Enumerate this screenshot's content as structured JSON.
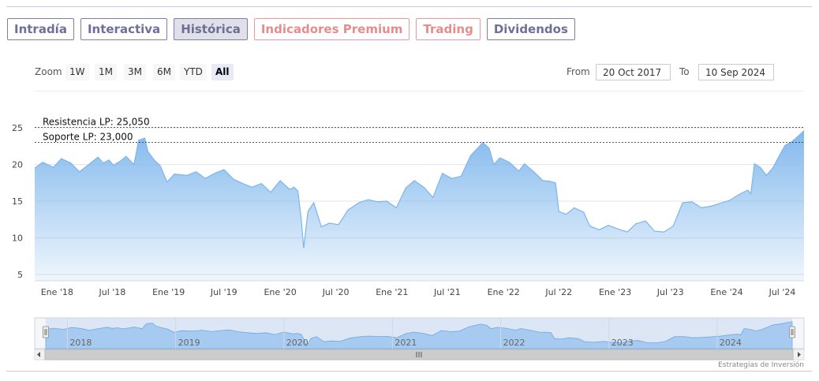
{
  "tabs": [
    {
      "label": "Intradía",
      "state": "normal"
    },
    {
      "label": "Interactiva",
      "state": "normal"
    },
    {
      "label": "Histórica",
      "state": "active"
    },
    {
      "label": "Indicadores Premium",
      "state": "premium"
    },
    {
      "label": "Trading",
      "state": "premium"
    },
    {
      "label": "Dividendos",
      "state": "normal"
    }
  ],
  "range_selector": {
    "zoom_label": "Zoom",
    "buttons": [
      "1W",
      "1M",
      "3M",
      "6M",
      "YTD",
      "All"
    ],
    "selected": "All",
    "from_label": "From",
    "from_value": "20 Oct 2017",
    "to_label": "To",
    "to_value": "10 Sep 2024"
  },
  "credits": "Estrategias de Inversión",
  "colors": {
    "series_line": "#7cb5ec",
    "navigator_fill": "#9ec6ee",
    "tab_border": "#7d7fa8",
    "premium_tab": "#e58d8d"
  },
  "chart_data": {
    "type": "area",
    "y_ticks": [
      "5",
      "10",
      "15",
      "20",
      "25"
    ],
    "ylim": [
      5,
      25
    ],
    "xlim": [
      "2017-10-20",
      "2024-09-10"
    ],
    "x_tick_labels": [
      "Ene '18",
      "Jul '18",
      "Ene '19",
      "Jul '19",
      "Ene '20",
      "Jul '20",
      "Ene '21",
      "Jul '21",
      "Ene '22",
      "Jul '22",
      "Ene '23",
      "Jul '23",
      "Ene '24",
      "Jul '24"
    ],
    "navigator_labels": [
      "2018",
      "2019",
      "2020",
      "2021",
      "2022",
      "2023",
      "2024"
    ],
    "grid": true,
    "annotations": [
      {
        "label": "Resistencia LP: 25,050",
        "value": 25.05
      },
      {
        "label": "Soporte LP: 23,000",
        "value": 23.0
      }
    ],
    "series": [
      {
        "points": [
          [
            "2017-10-20",
            19.5
          ],
          [
            "2017-11-15",
            20.3
          ],
          [
            "2017-12-20",
            19.6
          ],
          [
            "2018-01-15",
            20.8
          ],
          [
            "2018-02-15",
            20.2
          ],
          [
            "2018-03-15",
            19.0
          ],
          [
            "2018-04-15",
            20.0
          ],
          [
            "2018-05-15",
            21.0
          ],
          [
            "2018-06-01",
            20.2
          ],
          [
            "2018-06-20",
            20.6
          ],
          [
            "2018-07-05",
            19.9
          ],
          [
            "2018-07-25",
            20.4
          ],
          [
            "2018-08-15",
            21.1
          ],
          [
            "2018-09-10",
            20.0
          ],
          [
            "2018-09-25",
            23.3
          ],
          [
            "2018-10-15",
            23.6
          ],
          [
            "2018-10-25",
            21.8
          ],
          [
            "2018-11-15",
            20.6
          ],
          [
            "2018-12-05",
            19.8
          ],
          [
            "2018-12-27",
            17.6
          ],
          [
            "2019-01-20",
            18.7
          ],
          [
            "2019-03-01",
            18.5
          ],
          [
            "2019-04-01",
            19.0
          ],
          [
            "2019-05-01",
            18.1
          ],
          [
            "2019-06-01",
            18.8
          ],
          [
            "2019-07-01",
            19.3
          ],
          [
            "2019-08-01",
            18.0
          ],
          [
            "2019-09-01",
            17.4
          ],
          [
            "2019-10-01",
            16.9
          ],
          [
            "2019-11-01",
            17.4
          ],
          [
            "2019-12-01",
            16.2
          ],
          [
            "2020-01-01",
            17.8
          ],
          [
            "2020-02-01",
            16.6
          ],
          [
            "2020-02-15",
            16.9
          ],
          [
            "2020-02-28",
            16.4
          ],
          [
            "2020-03-10",
            12.5
          ],
          [
            "2020-03-18",
            8.6
          ],
          [
            "2020-04-01",
            13.6
          ],
          [
            "2020-04-20",
            14.8
          ],
          [
            "2020-05-15",
            11.5
          ],
          [
            "2020-06-10",
            12.0
          ],
          [
            "2020-07-10",
            11.8
          ],
          [
            "2020-08-10",
            13.8
          ],
          [
            "2020-09-15",
            14.8
          ],
          [
            "2020-10-15",
            15.2
          ],
          [
            "2020-11-15",
            14.9
          ],
          [
            "2020-12-15",
            15.0
          ],
          [
            "2021-01-15",
            14.1
          ],
          [
            "2021-02-15",
            16.8
          ],
          [
            "2021-03-15",
            17.8
          ],
          [
            "2021-04-15",
            16.9
          ],
          [
            "2021-05-15",
            15.5
          ],
          [
            "2021-06-15",
            18.8
          ],
          [
            "2021-07-15",
            18.1
          ],
          [
            "2021-08-15",
            18.4
          ],
          [
            "2021-09-15",
            21.2
          ],
          [
            "2021-10-10",
            22.3
          ],
          [
            "2021-10-25",
            23.0
          ],
          [
            "2021-11-15",
            22.2
          ],
          [
            "2021-11-30",
            20.0
          ],
          [
            "2021-12-20",
            20.9
          ],
          [
            "2022-01-20",
            20.3
          ],
          [
            "2022-02-20",
            19.1
          ],
          [
            "2022-03-10",
            20.1
          ],
          [
            "2022-04-10",
            19.0
          ],
          [
            "2022-05-10",
            17.8
          ],
          [
            "2022-06-01",
            17.7
          ],
          [
            "2022-06-20",
            17.5
          ],
          [
            "2022-07-01",
            13.6
          ],
          [
            "2022-07-25",
            13.2
          ],
          [
            "2022-08-20",
            14.1
          ],
          [
            "2022-09-20",
            13.5
          ],
          [
            "2022-10-10",
            11.6
          ],
          [
            "2022-11-10",
            11.1
          ],
          [
            "2022-12-10",
            11.7
          ],
          [
            "2023-01-10",
            11.2
          ],
          [
            "2023-02-10",
            10.8
          ],
          [
            "2023-03-10",
            11.9
          ],
          [
            "2023-04-10",
            12.3
          ],
          [
            "2023-05-10",
            10.9
          ],
          [
            "2023-06-10",
            10.8
          ],
          [
            "2023-07-10",
            11.6
          ],
          [
            "2023-08-10",
            14.8
          ],
          [
            "2023-09-10",
            14.9
          ],
          [
            "2023-10-10",
            14.1
          ],
          [
            "2023-11-10",
            14.3
          ],
          [
            "2023-12-10",
            14.7
          ],
          [
            "2024-01-10",
            15.1
          ],
          [
            "2024-02-10",
            15.9
          ],
          [
            "2024-03-10",
            16.5
          ],
          [
            "2024-03-20",
            16.0
          ],
          [
            "2024-04-01",
            20.1
          ],
          [
            "2024-04-20",
            19.6
          ],
          [
            "2024-05-10",
            18.5
          ],
          [
            "2024-06-01",
            19.6
          ],
          [
            "2024-06-20",
            21.1
          ],
          [
            "2024-07-10",
            22.6
          ],
          [
            "2024-08-01",
            23.1
          ],
          [
            "2024-08-20",
            23.8
          ],
          [
            "2024-09-10",
            24.6
          ]
        ]
      }
    ]
  }
}
